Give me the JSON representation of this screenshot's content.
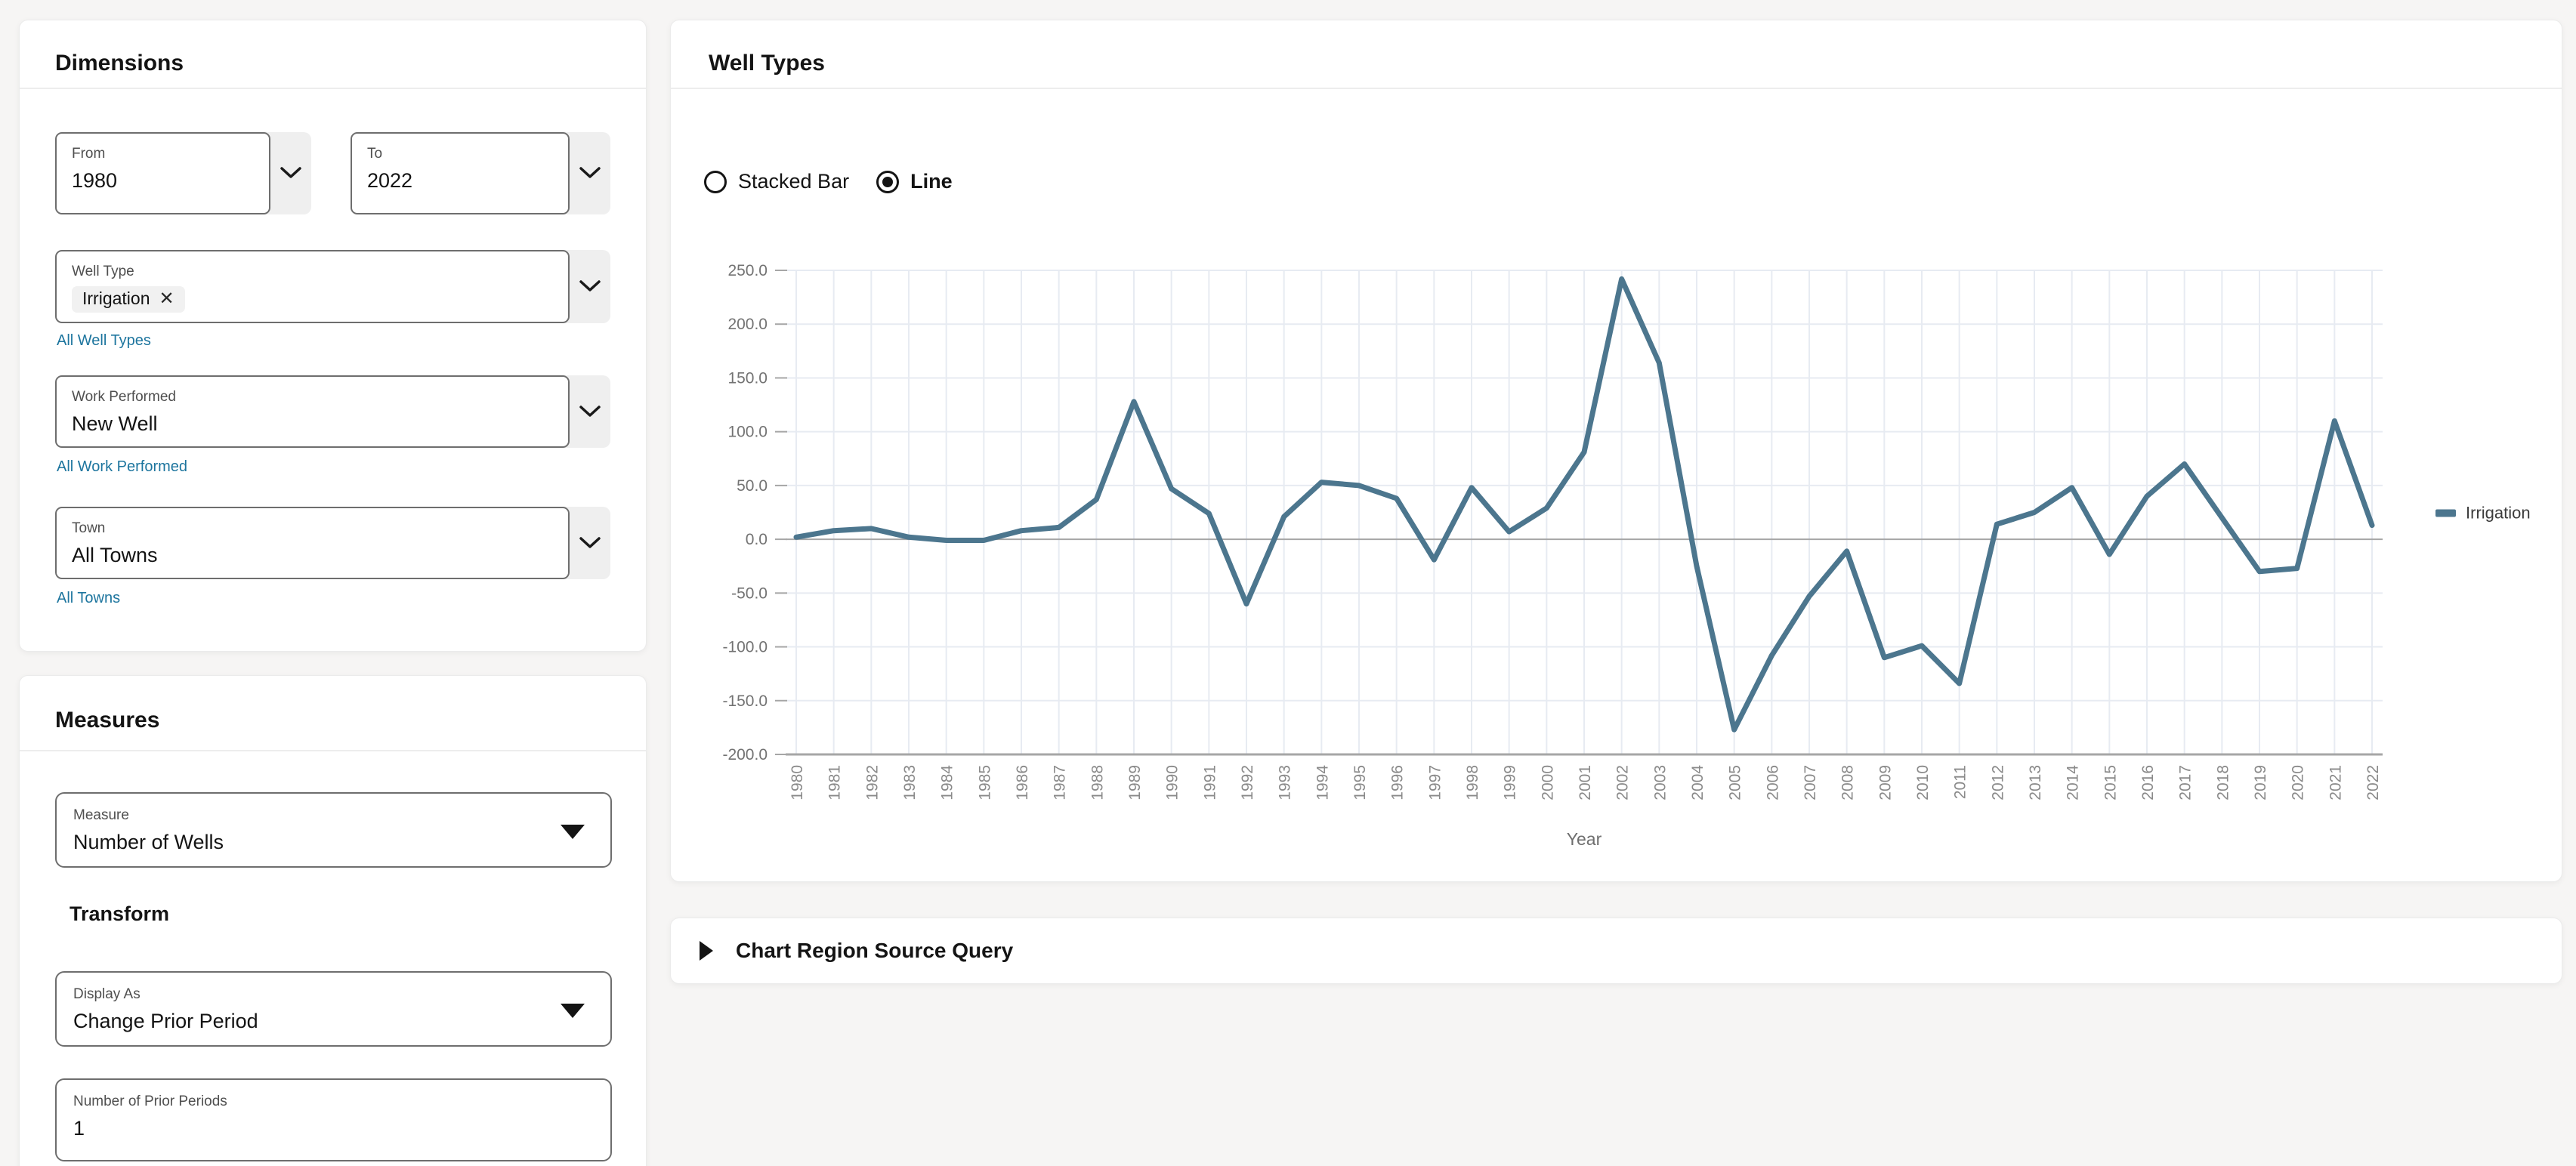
{
  "dimensions": {
    "title": "Dimensions",
    "from": {
      "label": "From",
      "value": "1980"
    },
    "to": {
      "label": "To",
      "value": "2022"
    },
    "well_type": {
      "label": "Well Type",
      "chip": "Irrigation",
      "chip_close": "✕",
      "link": "All Well Types"
    },
    "work_performed": {
      "label": "Work Performed",
      "value": "New Well",
      "link": "All Work Performed"
    },
    "town": {
      "label": "Town",
      "value": "All Towns",
      "link": "All Towns"
    }
  },
  "measures": {
    "title": "Measures",
    "measure": {
      "label": "Measure",
      "value": "Number of Wells"
    },
    "transform_title": "Transform",
    "display_as": {
      "label": "Display As",
      "value": "Change Prior Period"
    },
    "prior_periods": {
      "label": "Number of Prior Periods",
      "value": "1"
    }
  },
  "well_types_panel": {
    "title": "Well Types",
    "radio_stacked_label": "Stacked Bar",
    "radio_line_label": "Line",
    "selected": "Line"
  },
  "source_query_panel": {
    "title": "Chart Region Source Query"
  },
  "chart_data": {
    "type": "line",
    "xlabel": "Year",
    "ylabel": "",
    "ylim": [
      -200,
      250
    ],
    "ytick_step": 50,
    "grid": true,
    "legend_position": "right",
    "line_color": "#4c768e",
    "x": [
      1980,
      1981,
      1982,
      1983,
      1984,
      1985,
      1986,
      1987,
      1988,
      1989,
      1990,
      1991,
      1992,
      1993,
      1994,
      1995,
      1996,
      1997,
      1998,
      1999,
      2000,
      2001,
      2002,
      2003,
      2004,
      2005,
      2006,
      2007,
      2008,
      2009,
      2010,
      2011,
      2012,
      2013,
      2014,
      2015,
      2016,
      2017,
      2018,
      2019,
      2020,
      2021,
      2022
    ],
    "series": [
      {
        "name": "Irrigation",
        "values": [
          2,
          8,
          10,
          2,
          -1,
          -1,
          8,
          11,
          37,
          128,
          47,
          24,
          -60,
          21,
          53,
          50,
          38,
          -19,
          48,
          7,
          29,
          81,
          242,
          164,
          -25,
          -177,
          -108,
          -53,
          -11,
          -110,
          -99,
          -134,
          14,
          25,
          48,
          -14,
          40,
          70,
          20,
          -30,
          -27,
          110,
          13
        ]
      }
    ]
  }
}
